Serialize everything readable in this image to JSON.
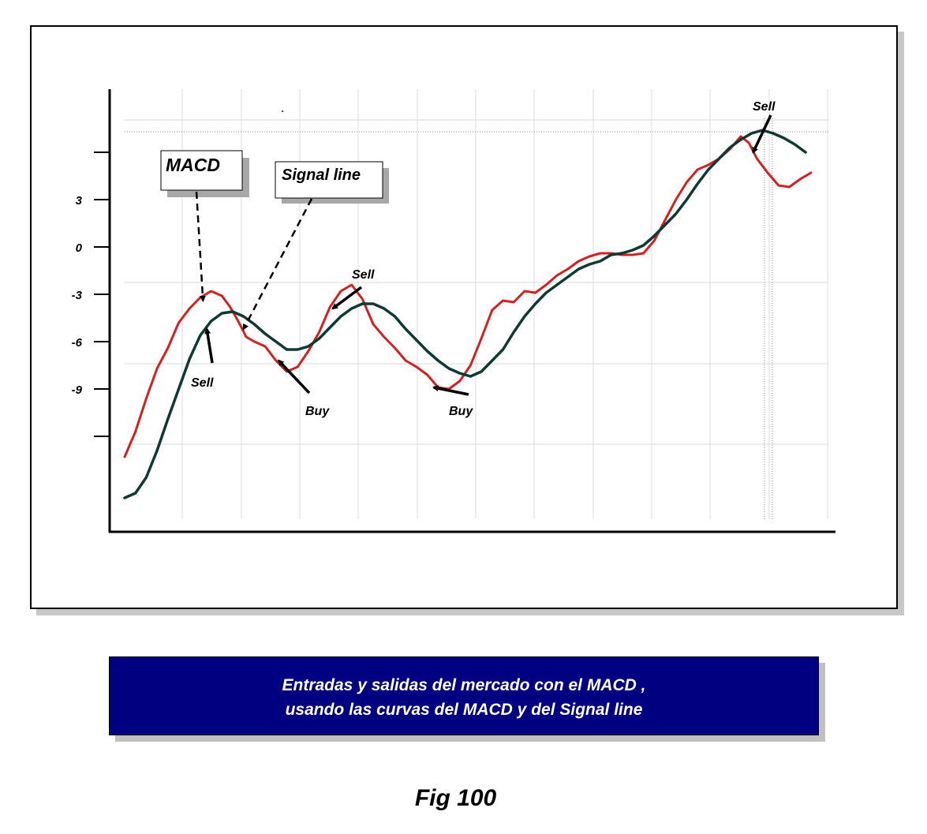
{
  "chart_data": {
    "type": "line",
    "title": "",
    "xlabel": "",
    "ylabel": "",
    "y_ticks": [
      "3",
      "0",
      "-3",
      "-6",
      "-9"
    ],
    "ylim": [
      -17,
      13
    ],
    "grid": true,
    "series": [
      {
        "name": "MACD",
        "color": "#d42020",
        "values": [
          [
            0,
            -13.3
          ],
          [
            2,
            -11.7
          ],
          [
            4,
            -9.6
          ],
          [
            6,
            -7.7
          ],
          [
            8,
            -6.4
          ],
          [
            10,
            -4.8
          ],
          [
            12,
            -3.9
          ],
          [
            14,
            -3.2
          ],
          [
            16,
            -2.8
          ],
          [
            18,
            -3.1
          ],
          [
            19.5,
            -3.8
          ],
          [
            21,
            -4.7
          ],
          [
            22.5,
            -5.7
          ],
          [
            24,
            -6.0
          ],
          [
            26,
            -6.3
          ],
          [
            28,
            -7.2
          ],
          [
            30,
            -7.9
          ],
          [
            32,
            -7.6
          ],
          [
            34,
            -6.6
          ],
          [
            36,
            -5.4
          ],
          [
            38,
            -3.8
          ],
          [
            40,
            -2.8
          ],
          [
            42,
            -2.4
          ],
          [
            44,
            -3.3
          ],
          [
            46,
            -4.9
          ],
          [
            48,
            -5.7
          ],
          [
            50,
            -6.4
          ],
          [
            52,
            -7.2
          ],
          [
            54,
            -7.6
          ],
          [
            56,
            -8.1
          ],
          [
            58,
            -8.9
          ],
          [
            60,
            -9.0
          ],
          [
            62,
            -8.5
          ],
          [
            64,
            -7.5
          ],
          [
            66,
            -5.8
          ],
          [
            68,
            -4.0
          ],
          [
            70,
            -3.4
          ],
          [
            72,
            -3.5
          ],
          [
            74,
            -2.8
          ],
          [
            76,
            -2.9
          ],
          [
            78,
            -2.4
          ],
          [
            80,
            -1.8
          ],
          [
            82,
            -1.4
          ],
          [
            84,
            -0.9
          ],
          [
            86,
            -0.6
          ],
          [
            88,
            -0.4
          ],
          [
            90,
            -0.4
          ],
          [
            92,
            -0.5
          ],
          [
            94,
            -0.5
          ],
          [
            96,
            -0.4
          ],
          [
            98,
            0.4
          ],
          [
            100,
            1.7
          ],
          [
            102,
            3.0
          ],
          [
            104,
            4.1
          ],
          [
            106,
            4.9
          ],
          [
            108,
            5.2
          ],
          [
            110,
            5.6
          ],
          [
            112,
            6.2
          ],
          [
            114,
            7.0
          ],
          [
            115.5,
            6.6
          ],
          [
            117,
            5.6
          ],
          [
            119,
            4.7
          ],
          [
            121,
            3.9
          ],
          [
            123,
            3.8
          ],
          [
            125,
            4.3
          ],
          [
            127,
            4.7
          ]
        ]
      },
      {
        "name": "Signal line",
        "color": "#0f3a34",
        "values": [
          [
            0,
            -15.9
          ],
          [
            2,
            -15.6
          ],
          [
            4,
            -14.6
          ],
          [
            6,
            -12.9
          ],
          [
            8,
            -10.9
          ],
          [
            10,
            -9.0
          ],
          [
            12,
            -7.1
          ],
          [
            14,
            -5.6
          ],
          [
            16,
            -4.7
          ],
          [
            18,
            -4.2
          ],
          [
            20,
            -4.1
          ],
          [
            22,
            -4.4
          ],
          [
            24,
            -4.9
          ],
          [
            26,
            -5.5
          ],
          [
            28,
            -6.0
          ],
          [
            30,
            -6.5
          ],
          [
            32,
            -6.5
          ],
          [
            34,
            -6.3
          ],
          [
            36,
            -5.8
          ],
          [
            38,
            -5.1
          ],
          [
            40,
            -4.4
          ],
          [
            42,
            -3.9
          ],
          [
            44,
            -3.6
          ],
          [
            46,
            -3.6
          ],
          [
            48,
            -3.9
          ],
          [
            50,
            -4.4
          ],
          [
            52,
            -5.2
          ],
          [
            54,
            -5.9
          ],
          [
            56,
            -6.6
          ],
          [
            58,
            -7.2
          ],
          [
            60,
            -7.7
          ],
          [
            62,
            -8.0
          ],
          [
            64,
            -8.2
          ],
          [
            66,
            -7.9
          ],
          [
            68,
            -7.2
          ],
          [
            70,
            -6.5
          ],
          [
            72,
            -5.4
          ],
          [
            74,
            -4.4
          ],
          [
            76,
            -3.6
          ],
          [
            78,
            -2.9
          ],
          [
            80,
            -2.4
          ],
          [
            82,
            -1.9
          ],
          [
            84,
            -1.4
          ],
          [
            86,
            -1.1
          ],
          [
            88,
            -0.9
          ],
          [
            90,
            -0.5
          ],
          [
            92,
            -0.4
          ],
          [
            94,
            -0.2
          ],
          [
            96,
            0.1
          ],
          [
            98,
            0.7
          ],
          [
            100,
            1.4
          ],
          [
            102,
            2.1
          ],
          [
            104,
            3.0
          ],
          [
            106,
            4.0
          ],
          [
            108,
            4.9
          ],
          [
            110,
            5.6
          ],
          [
            112,
            6.3
          ],
          [
            114,
            6.8
          ],
          [
            116,
            7.2
          ],
          [
            118,
            7.4
          ],
          [
            120,
            7.2
          ],
          [
            122,
            6.9
          ],
          [
            124,
            6.5
          ],
          [
            126,
            6.0
          ]
        ]
      }
    ],
    "annotations": [
      {
        "text": "MACD",
        "target": [
          14.5,
          -3.4
        ]
      },
      {
        "text": "Signal line",
        "target": [
          22,
          -5.2
        ]
      },
      {
        "text": "Sell",
        "target": [
          15.2,
          -5.2
        ]
      },
      {
        "text": "Buy",
        "target": [
          28.5,
          -7.2
        ]
      },
      {
        "text": "Sell",
        "target": [
          38.5,
          -3.9
        ]
      },
      {
        "text": "Buy",
        "target": [
          57.2,
          -8.9
        ]
      },
      {
        "text": "Sell",
        "target": [
          116.3,
          6.0
        ]
      }
    ]
  },
  "caption": {
    "line1": "Entradas y salidas del mercado con el MACD ,",
    "line2": "usando las curvas del MACD y  del Signal line"
  },
  "figure_label": "Fig 100"
}
